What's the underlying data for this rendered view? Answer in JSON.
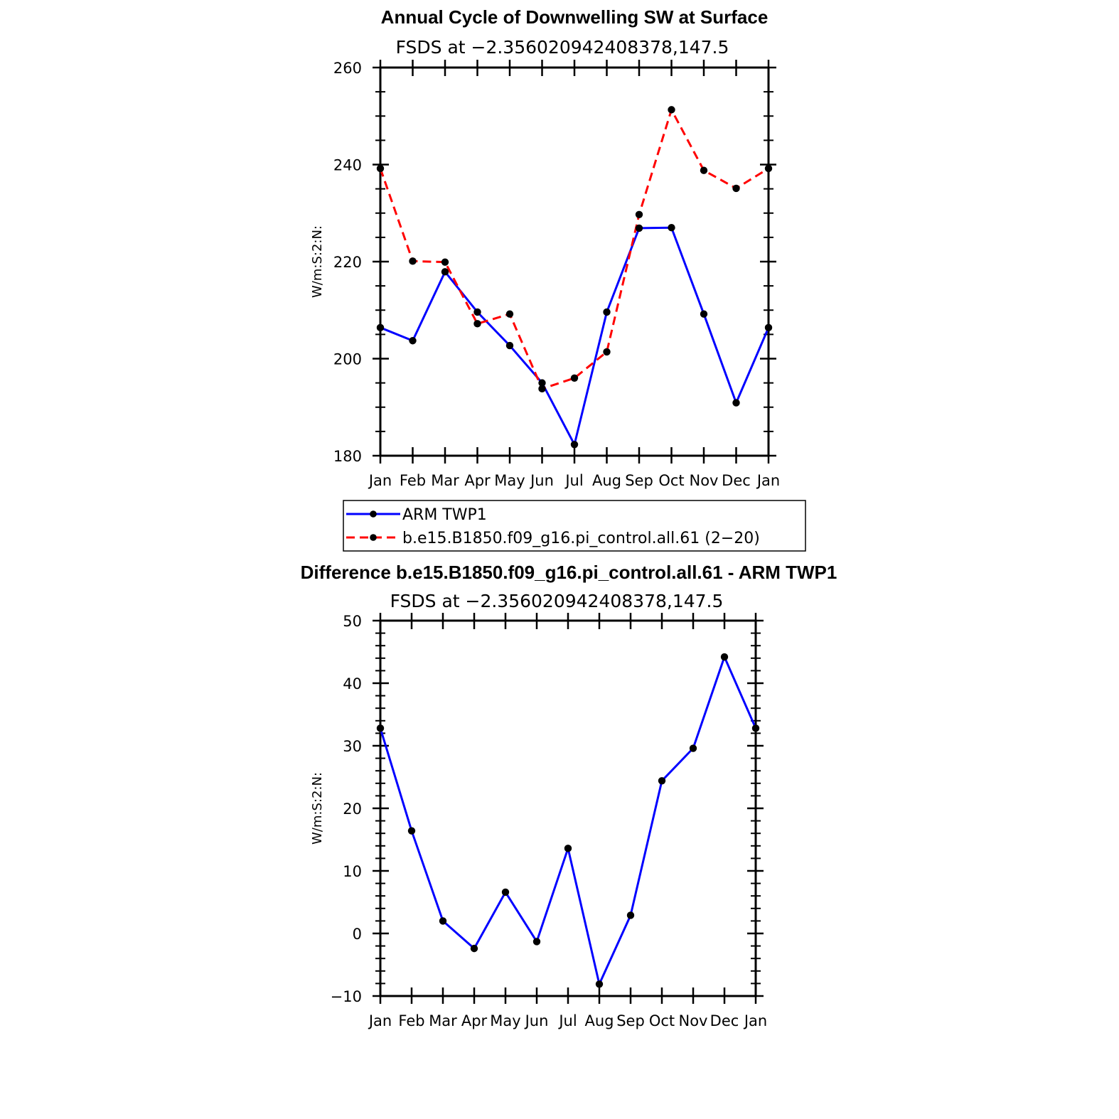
{
  "chart_data": [
    {
      "type": "line",
      "title": "Annual Cycle of Downwelling SW at Surface",
      "subtitle": "FSDS at −2.356020942408378,147.5",
      "ylabel": "W/m:S:2:N:",
      "xlabel": "",
      "categories": [
        "Jan",
        "Feb",
        "Mar",
        "Apr",
        "May",
        "Jun",
        "Jul",
        "Aug",
        "Sep",
        "Oct",
        "Nov",
        "Dec",
        "Jan"
      ],
      "ylim": [
        180,
        260
      ],
      "yticks": [
        "180",
        "200",
        "220",
        "240",
        "260"
      ],
      "series": [
        {
          "name": "ARM TWP1",
          "color": "#0000ff",
          "dash": "solid",
          "values": [
            206.4,
            203.7,
            217.9,
            209.6,
            202.7,
            195.0,
            182.3,
            209.6,
            226.9,
            227.0,
            209.2,
            190.9,
            206.4
          ]
        },
        {
          "name": "b.e15.B1850.f09_g16.pi_control.all.61 (2−20)",
          "color": "#ff0000",
          "dash": "dashed",
          "values": [
            239.2,
            220.1,
            219.9,
            207.2,
            209.2,
            193.8,
            196.0,
            201.4,
            229.7,
            251.3,
            238.8,
            235.1,
            239.2
          ]
        }
      ],
      "legend_position": "below"
    },
    {
      "type": "line",
      "title": "Difference b.e15.B1850.f09_g16.pi_control.all.61 - ARM TWP1",
      "subtitle": "FSDS at −2.356020942408378,147.5",
      "ylabel": "W/m:S:2:N:",
      "xlabel": "",
      "categories": [
        "Jan",
        "Feb",
        "Mar",
        "Apr",
        "May",
        "Jun",
        "Jul",
        "Aug",
        "Sep",
        "Oct",
        "Nov",
        "Dec",
        "Jan"
      ],
      "ylim": [
        -10,
        50
      ],
      "yticks": [
        "−10",
        "0",
        "10",
        "20",
        "30",
        "40",
        "50"
      ],
      "series": [
        {
          "name": "Difference",
          "color": "#0000ff",
          "dash": "solid",
          "values": [
            32.8,
            16.4,
            2.0,
            -2.4,
            6.6,
            -1.3,
            13.6,
            -8.1,
            2.9,
            24.4,
            29.6,
            44.2,
            32.8
          ]
        }
      ]
    }
  ]
}
